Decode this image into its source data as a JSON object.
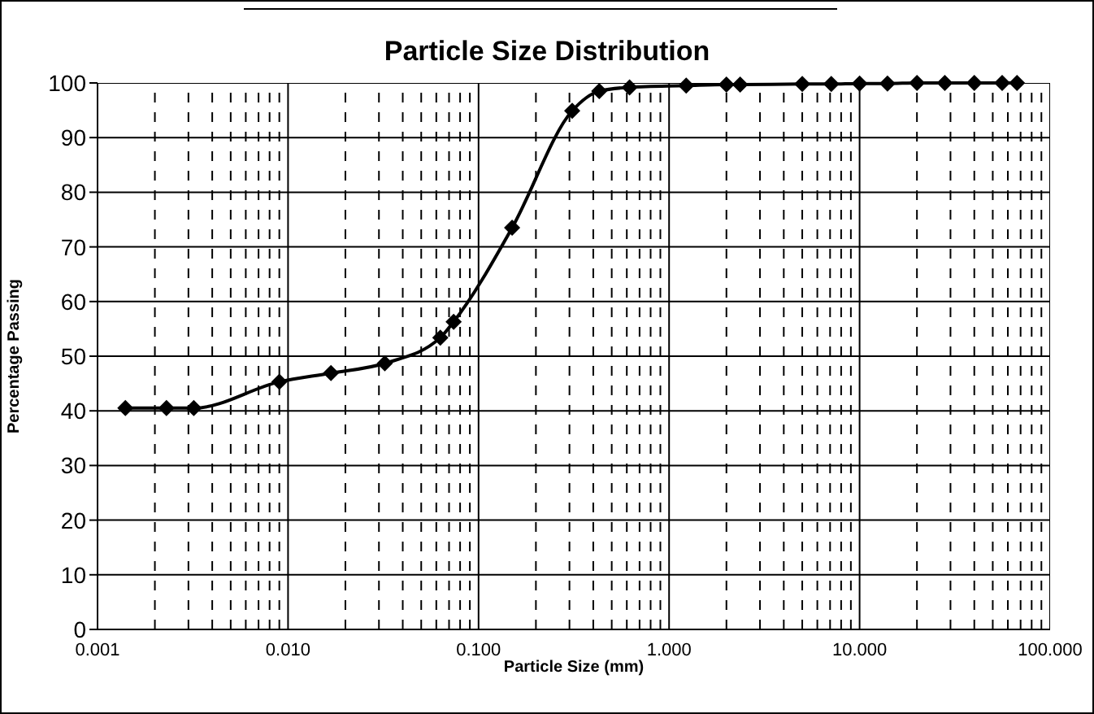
{
  "chart_data": {
    "type": "line",
    "title": "Particle Size Distribution",
    "xlabel": "Particle Size (mm)",
    "ylabel": "Percentage Passing",
    "x": [
      0.0014,
      0.0023,
      0.0032,
      0.009,
      0.0168,
      0.0322,
      0.063,
      0.074,
      0.15,
      0.31,
      0.43,
      0.62,
      1.23,
      2.0,
      2.36,
      5.0,
      7.1,
      10,
      14,
      20,
      28,
      40,
      56,
      67
    ],
    "series": [
      {
        "color": "#000000",
        "values": [
          40.5,
          40.5,
          40.5,
          45.3,
          46.9,
          48.7,
          53.4,
          56.3,
          73.5,
          94.9,
          98.5,
          99.2,
          99.5,
          99.7,
          99.7,
          99.8,
          99.8,
          99.9,
          99.9,
          100,
          100,
          100,
          100,
          100
        ]
      }
    ],
    "log": "x",
    "xlim": [
      0.001,
      100
    ],
    "xticks": [
      {
        "value": 0.001,
        "label": "0.001"
      },
      {
        "value": 0.002,
        "label": null
      },
      {
        "value": 0.003,
        "label": null
      },
      {
        "value": 0.004,
        "label": null
      },
      {
        "value": 0.005,
        "label": null
      },
      {
        "value": 0.006,
        "label": null
      },
      {
        "value": 0.007,
        "label": null
      },
      {
        "value": 0.008,
        "label": null
      },
      {
        "value": 0.009,
        "label": null
      },
      {
        "value": 0.01,
        "label": "0.010"
      },
      {
        "value": 0.02,
        "label": null
      },
      {
        "value": 0.03,
        "label": null
      },
      {
        "value": 0.04,
        "label": null
      },
      {
        "value": 0.05,
        "label": null
      },
      {
        "value": 0.06,
        "label": null
      },
      {
        "value": 0.07,
        "label": null
      },
      {
        "value": 0.08,
        "label": null
      },
      {
        "value": 0.09,
        "label": null
      },
      {
        "value": 0.1,
        "label": "0.100"
      },
      {
        "value": 0.2,
        "label": null
      },
      {
        "value": 0.3,
        "label": null
      },
      {
        "value": 0.4,
        "label": null
      },
      {
        "value": 0.5,
        "label": null
      },
      {
        "value": 0.6,
        "label": null
      },
      {
        "value": 0.7,
        "label": null
      },
      {
        "value": 0.8,
        "label": null
      },
      {
        "value": 0.9,
        "label": null
      },
      {
        "value": 1,
        "label": "1.000"
      },
      {
        "value": 2,
        "label": null
      },
      {
        "value": 3,
        "label": null
      },
      {
        "value": 4,
        "label": null
      },
      {
        "value": 5,
        "label": null
      },
      {
        "value": 6,
        "label": null
      },
      {
        "value": 7,
        "label": null
      },
      {
        "value": 8,
        "label": null
      },
      {
        "value": 9,
        "label": null
      },
      {
        "value": 10,
        "label": "10.000"
      },
      {
        "value": 20,
        "label": null
      },
      {
        "value": 30,
        "label": null
      },
      {
        "value": 40,
        "label": null
      },
      {
        "value": 50,
        "label": null
      },
      {
        "value": 60,
        "label": null
      },
      {
        "value": 70,
        "label": null
      },
      {
        "value": 80,
        "label": null
      },
      {
        "value": 90,
        "label": null
      },
      {
        "value": 100,
        "label": "100.000"
      }
    ],
    "ylim": [
      0,
      100
    ],
    "yticks": [
      0,
      10,
      20,
      30,
      40,
      50,
      60,
      70,
      80,
      90,
      100
    ],
    "grid": true,
    "marker": "diamond",
    "line_style": "solid"
  }
}
